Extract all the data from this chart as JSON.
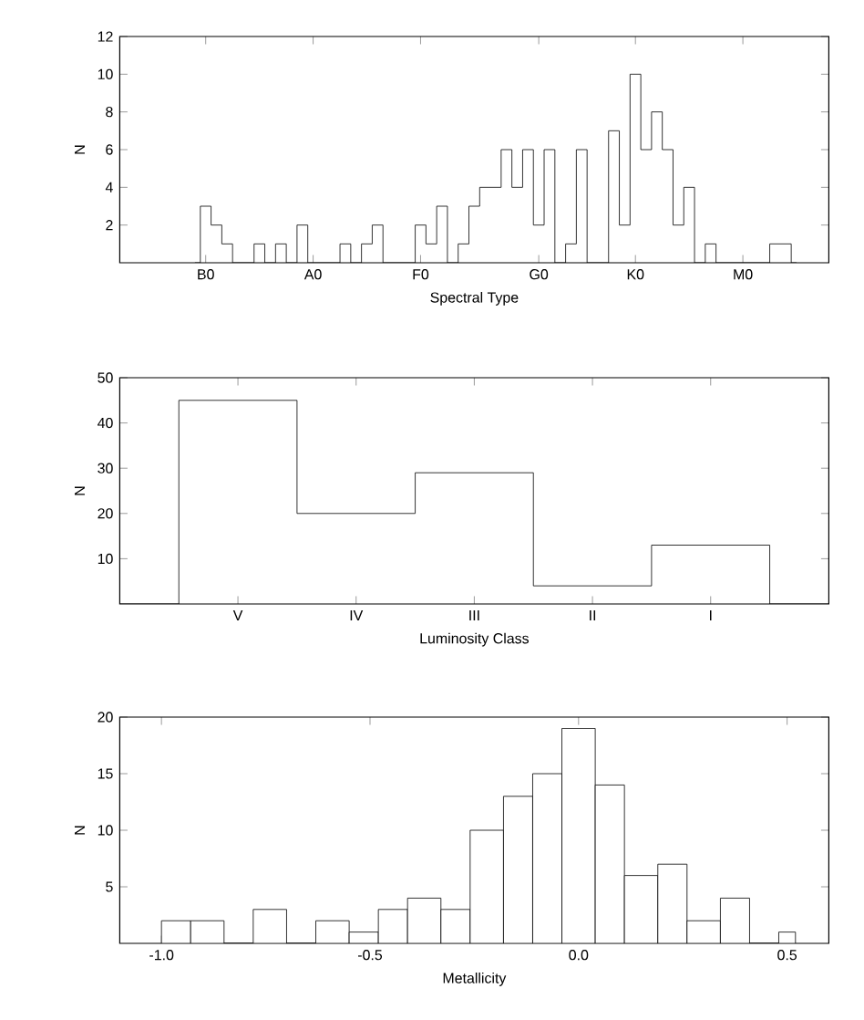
{
  "chart_data": [
    {
      "type": "step",
      "xlabel": "Spectral Type",
      "ylabel": "N",
      "color": "#000000",
      "categories": [
        null,
        null,
        null,
        null,
        null,
        null,
        null,
        null,
        "B0",
        null,
        null,
        null,
        null,
        null,
        null,
        null,
        null,
        null,
        "A0",
        null,
        null,
        null,
        null,
        null,
        null,
        null,
        null,
        null,
        "F0",
        null,
        null,
        null,
        null,
        null,
        null,
        null,
        null,
        null,
        null,
        "G0",
        null,
        null,
        null,
        null,
        null,
        null,
        null,
        null,
        "K0",
        null,
        null,
        null,
        null,
        null,
        null,
        null,
        null,
        null,
        "M0",
        null,
        null,
        null,
        null,
        null,
        null,
        null,
        null
      ],
      "values": [
        null,
        null,
        null,
        null,
        null,
        null,
        null,
        0,
        3,
        2,
        1,
        0,
        0,
        1,
        0,
        1,
        0,
        2,
        0,
        0,
        0,
        1,
        0,
        1,
        2,
        0,
        0,
        0,
        2,
        1,
        3,
        0,
        1,
        3,
        4,
        4,
        6,
        4,
        6,
        2,
        6,
        0,
        1,
        6,
        0,
        0,
        7,
        2,
        10,
        6,
        8,
        6,
        2,
        4,
        0,
        1,
        0,
        0,
        0,
        0,
        0,
        1,
        1,
        0,
        null,
        null,
        null
      ],
      "ylim": [
        0,
        12
      ],
      "yticks": [
        2,
        4,
        6,
        8,
        10,
        12
      ]
    },
    {
      "type": "step",
      "xlabel": "Luminosity Class",
      "ylabel": "N",
      "color": "#000000",
      "categories": [
        null,
        "V",
        "IV",
        "III",
        "II",
        "I",
        null
      ],
      "values": [
        0,
        45,
        20,
        29,
        4,
        13,
        0
      ],
      "ylim": [
        0,
        50
      ],
      "yticks": [
        10,
        20,
        30,
        40,
        50
      ]
    },
    {
      "type": "histogram",
      "xlabel": "Metallicity",
      "ylabel": "N",
      "color": "#000000",
      "bins": [
        -1.0,
        -0.93,
        -0.85,
        -0.78,
        -0.7,
        -0.63,
        -0.55,
        -0.48,
        -0.41,
        -0.33,
        -0.26,
        -0.18,
        -0.11,
        -0.04,
        0.04,
        0.11,
        0.19,
        0.26,
        0.34,
        0.41,
        0.48,
        0.52
      ],
      "values": [
        2,
        2,
        0,
        3,
        0,
        2,
        1,
        3,
        4,
        3,
        10,
        13,
        15,
        19,
        14,
        6,
        7,
        2,
        4,
        0,
        1
      ],
      "xlim": [
        -1.1,
        0.6
      ],
      "ylim": [
        0,
        20
      ],
      "xticks": [
        {
          "value": -1.0,
          "label": "-1.0"
        },
        {
          "value": -0.5,
          "label": "-0.5"
        },
        {
          "value": 0.0,
          "label": "0.0"
        },
        {
          "value": 0.5,
          "label": "0.5"
        }
      ],
      "yticks": [
        5,
        10,
        15,
        20
      ]
    }
  ]
}
